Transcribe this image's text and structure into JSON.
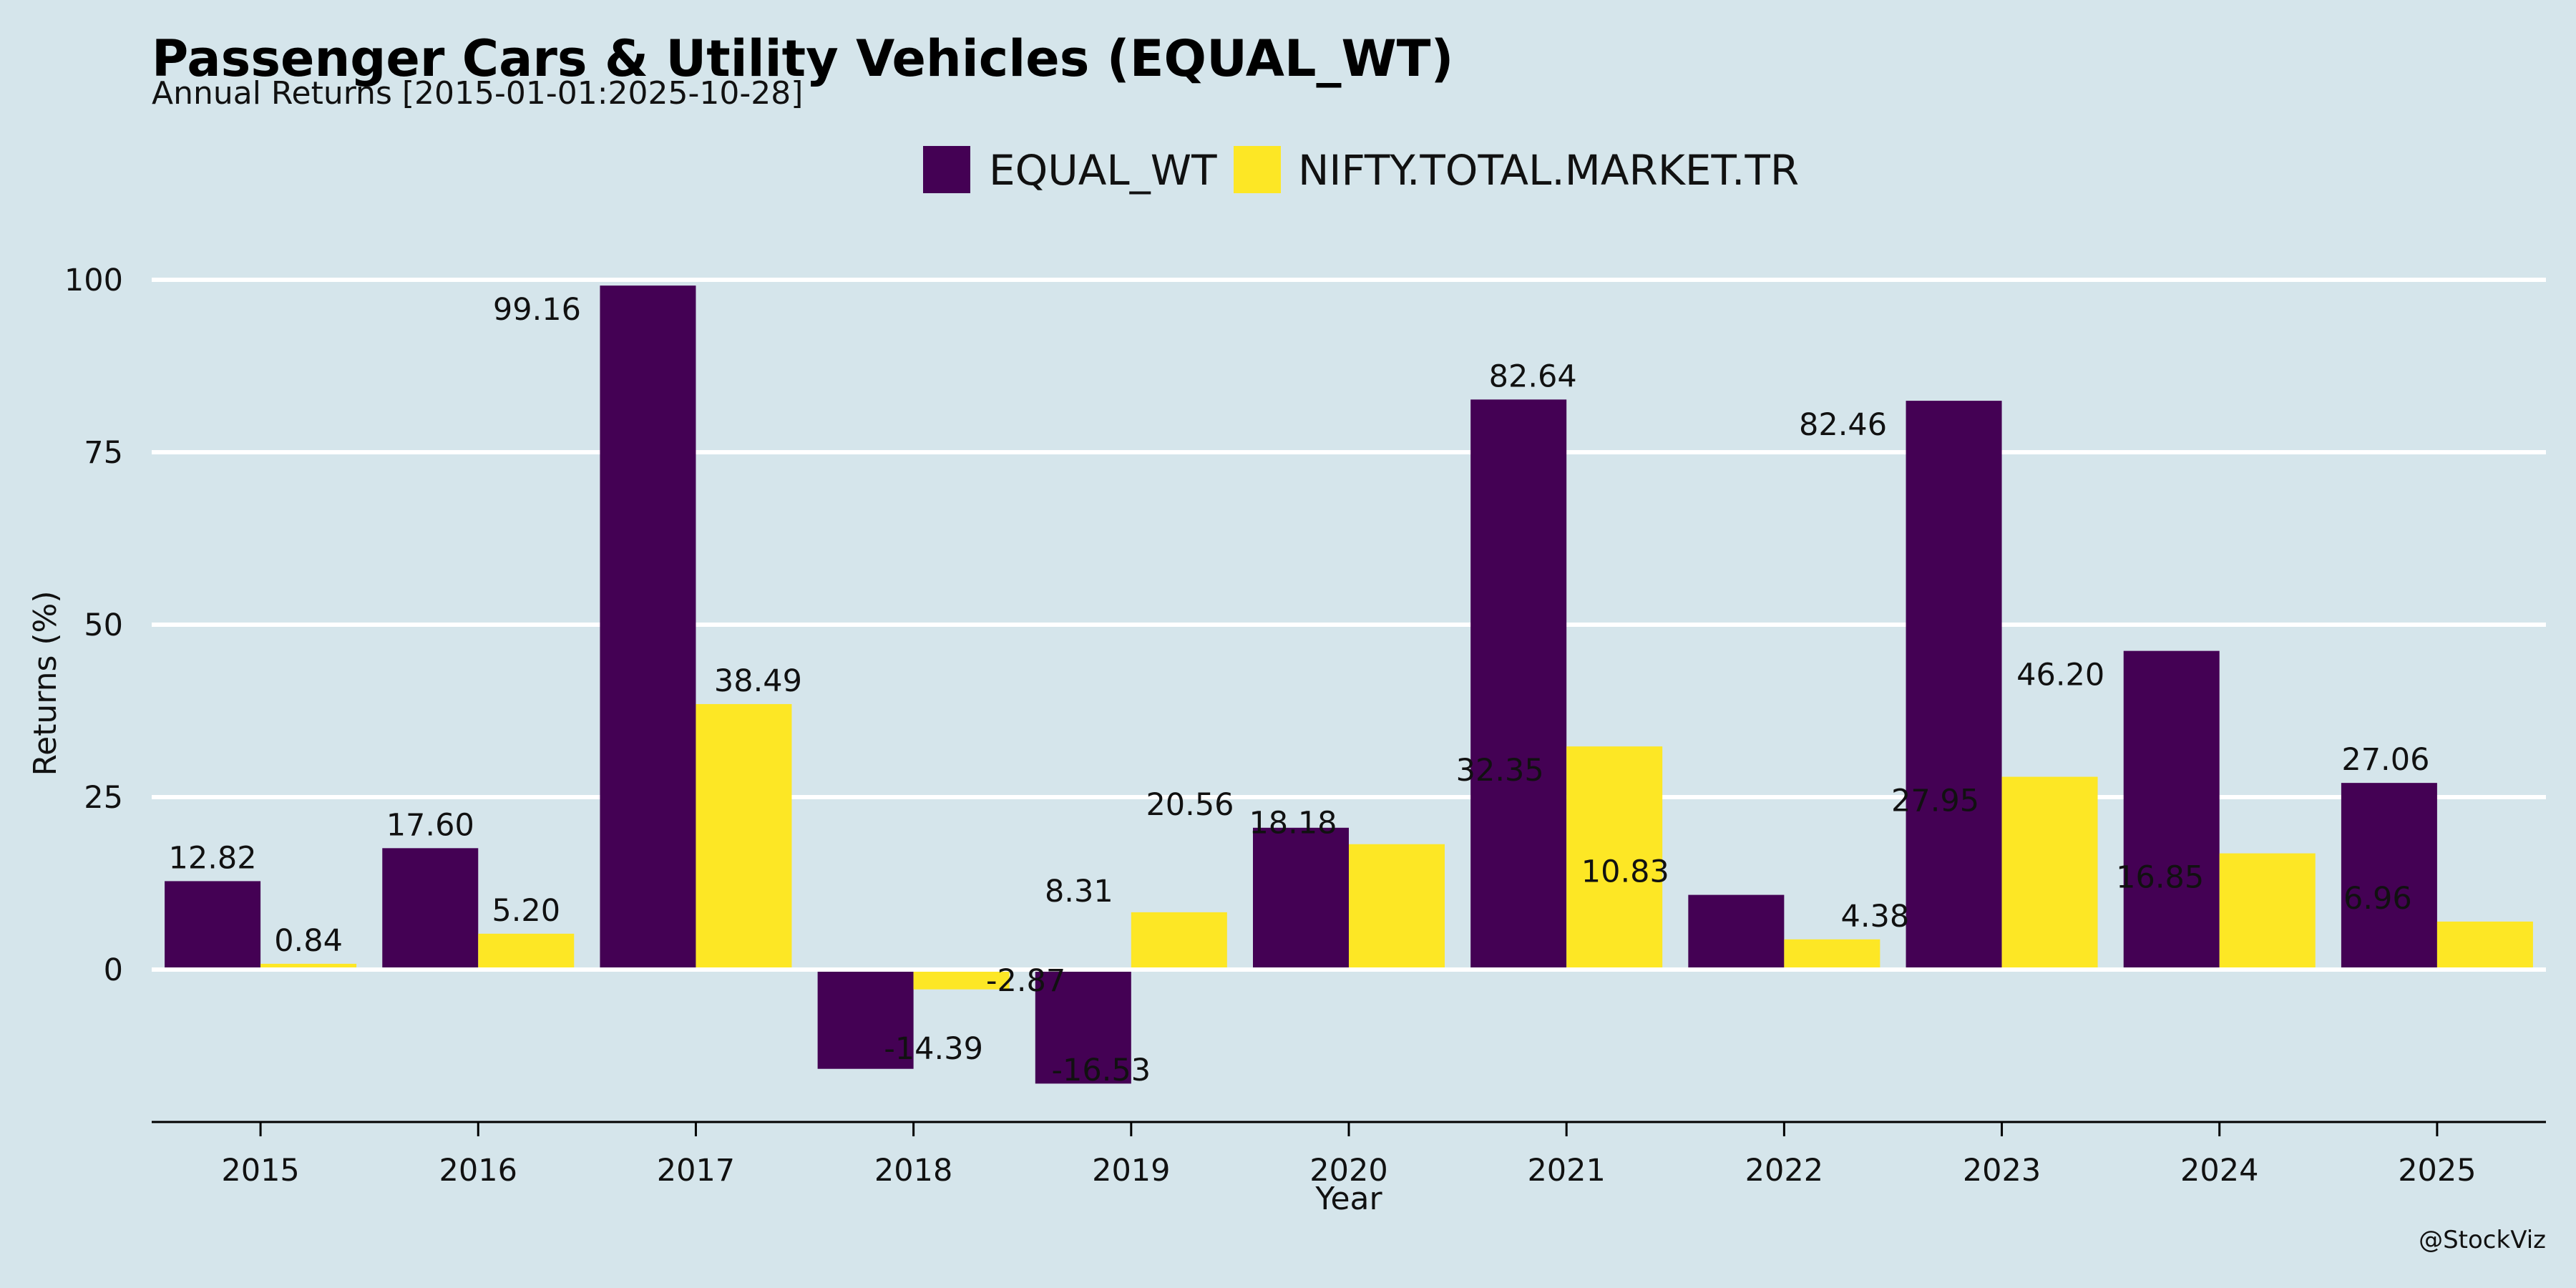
{
  "chart_data": {
    "type": "bar",
    "title": "Passenger Cars & Utility Vehicles (EQUAL_WT)",
    "subtitle": "Annual Returns [2015-01-01:2025-10-28]",
    "xlabel": "Year",
    "ylabel": "Returns (%)",
    "categories": [
      "2015",
      "2016",
      "2017",
      "2018",
      "2019",
      "2020",
      "2021",
      "2022",
      "2023",
      "2024",
      "2025"
    ],
    "series": [
      {
        "name": "EQUAL_WT",
        "color": "#440154",
        "values": [
          12.82,
          17.6,
          99.16,
          -14.39,
          -16.53,
          20.56,
          82.64,
          10.83,
          82.46,
          46.2,
          27.06
        ],
        "labels": [
          "12.82",
          "17.60",
          "99.16",
          "-14.39",
          "-16.53",
          "20.56",
          "82.64",
          "10.83",
          "82.46",
          "46.20",
          "27.06"
        ]
      },
      {
        "name": "NIFTY.TOTAL.MARKET.TR",
        "color": "#fde725",
        "values": [
          0.84,
          5.2,
          38.49,
          -2.87,
          8.31,
          18.18,
          32.35,
          4.38,
          27.95,
          16.85,
          6.96
        ],
        "labels": [
          "0.84",
          "5.20",
          "38.49",
          "-2.87",
          "8.31",
          "18.18",
          "32.35",
          "4.38",
          "27.95",
          "16.85",
          "6.96"
        ]
      }
    ],
    "yticks": [
      0,
      25,
      50,
      75,
      100
    ],
    "ylim": [
      -22,
      110
    ],
    "grid": true,
    "legend_position": "top-center"
  },
  "credit": "@StockViz"
}
